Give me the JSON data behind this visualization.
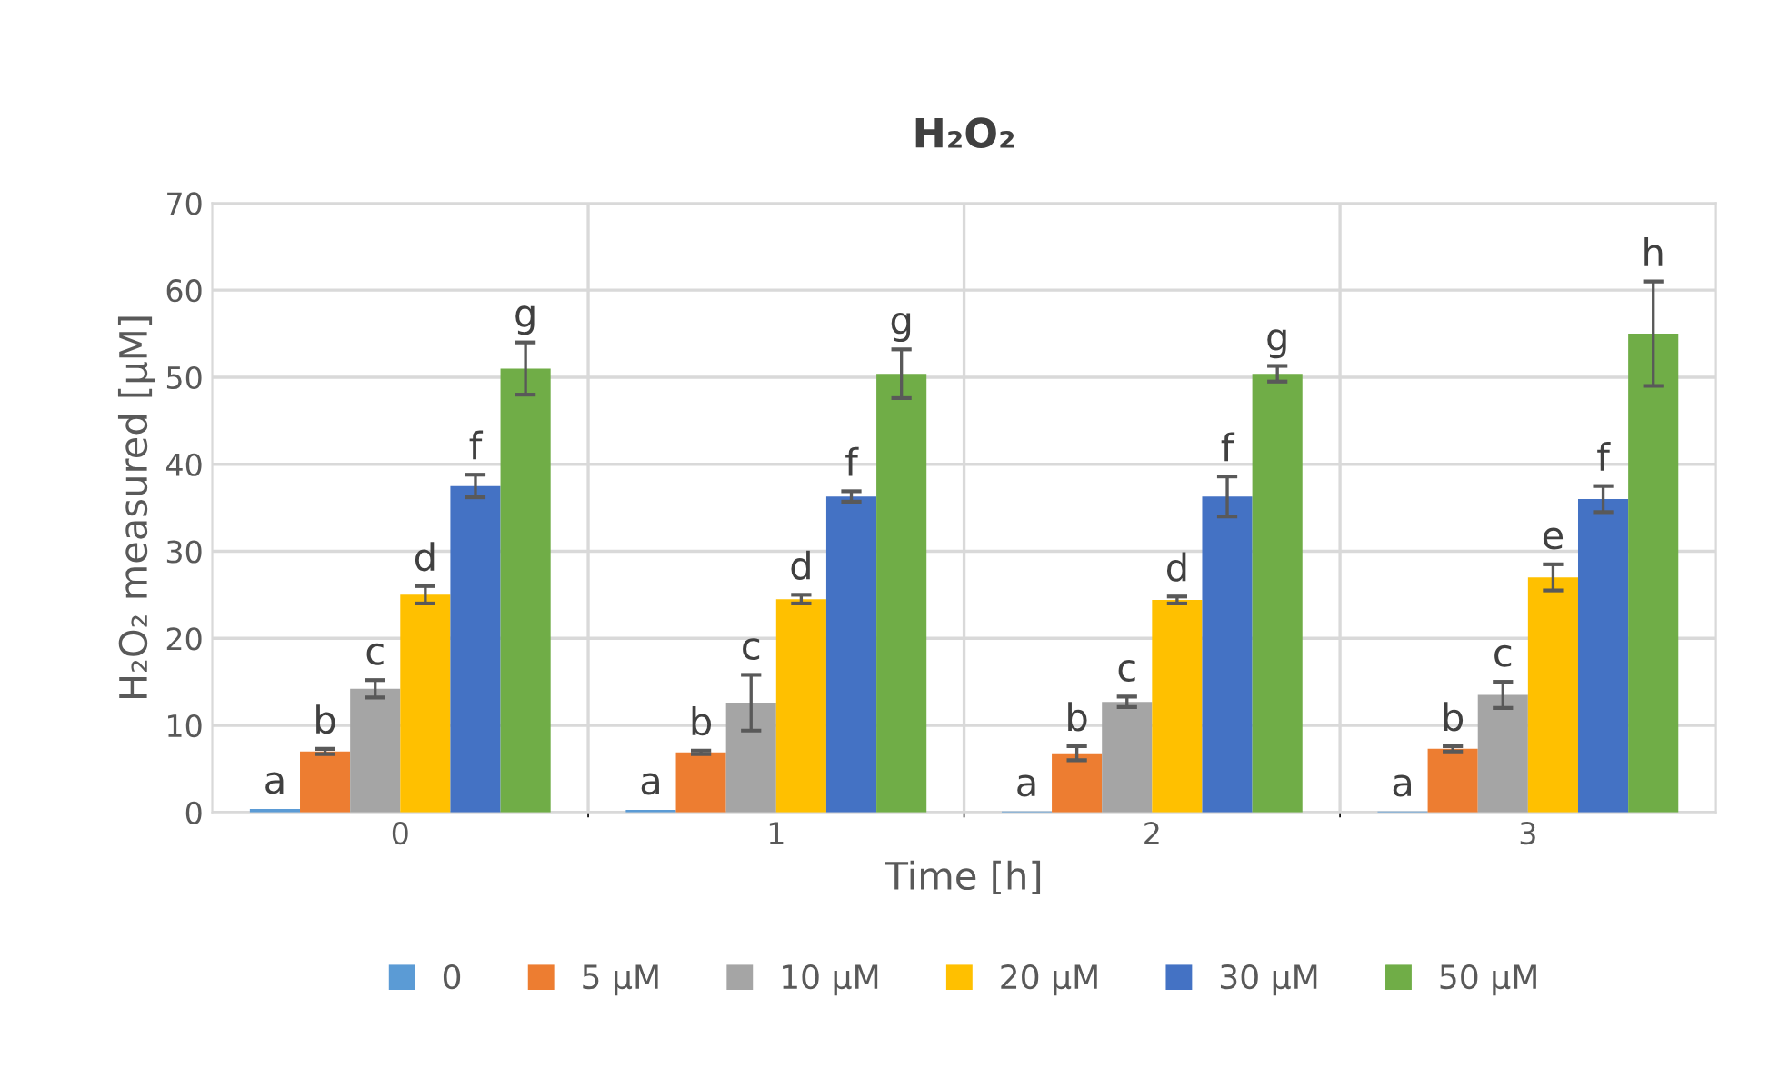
{
  "chart_data": {
    "type": "bar",
    "title": "H₂O₂",
    "xlabel": "Time [h]",
    "ylabel": "H₂O₂ measured [µM]",
    "categories": [
      "0",
      "1",
      "2",
      "3"
    ],
    "series": [
      {
        "name": "0",
        "color": "#5b9bd5",
        "values": [
          0.4,
          0.3,
          0.1,
          0.1
        ],
        "errors": [
          null,
          null,
          null,
          null
        ],
        "value_labels": [
          "a",
          "a",
          "a",
          "a"
        ]
      },
      {
        "name": "5 µM",
        "color": "#ed7d31",
        "values": [
          7,
          6.9,
          6.8,
          7.3
        ],
        "errors": [
          0.3,
          0.2,
          0.8,
          0.3
        ],
        "value_labels": [
          "b",
          "b",
          "b",
          "b"
        ]
      },
      {
        "name": "10 µM",
        "color": "#a5a5a5",
        "values": [
          14.2,
          12.6,
          12.7,
          13.5
        ],
        "errors": [
          1,
          3.2,
          0.6,
          1.5
        ],
        "value_labels": [
          "c",
          "c",
          "c",
          "c"
        ]
      },
      {
        "name": "20 µM",
        "color": "#ffc000",
        "values": [
          25,
          24.5,
          24.4,
          27
        ],
        "errors": [
          1,
          0.5,
          0.4,
          1.5
        ],
        "value_labels": [
          "d",
          "d",
          "d",
          "e"
        ]
      },
      {
        "name": "30 µM",
        "color": "#4472c4",
        "values": [
          37.5,
          36.3,
          36.3,
          36
        ],
        "errors": [
          1.3,
          0.6,
          2.3,
          1.5
        ],
        "value_labels": [
          "f",
          "f",
          "f",
          "f"
        ]
      },
      {
        "name": "50 µM",
        "color": "#70ad47",
        "values": [
          51,
          50.4,
          50.4,
          55
        ],
        "errors": [
          3,
          2.8,
          0.9,
          6
        ],
        "value_labels": [
          "g",
          "g",
          "g",
          "h"
        ]
      }
    ],
    "ylim": [
      0,
      70
    ],
    "yticks": [
      0,
      10,
      20,
      30,
      40,
      50,
      60,
      70
    ],
    "grid": true,
    "legend": "bottom"
  }
}
